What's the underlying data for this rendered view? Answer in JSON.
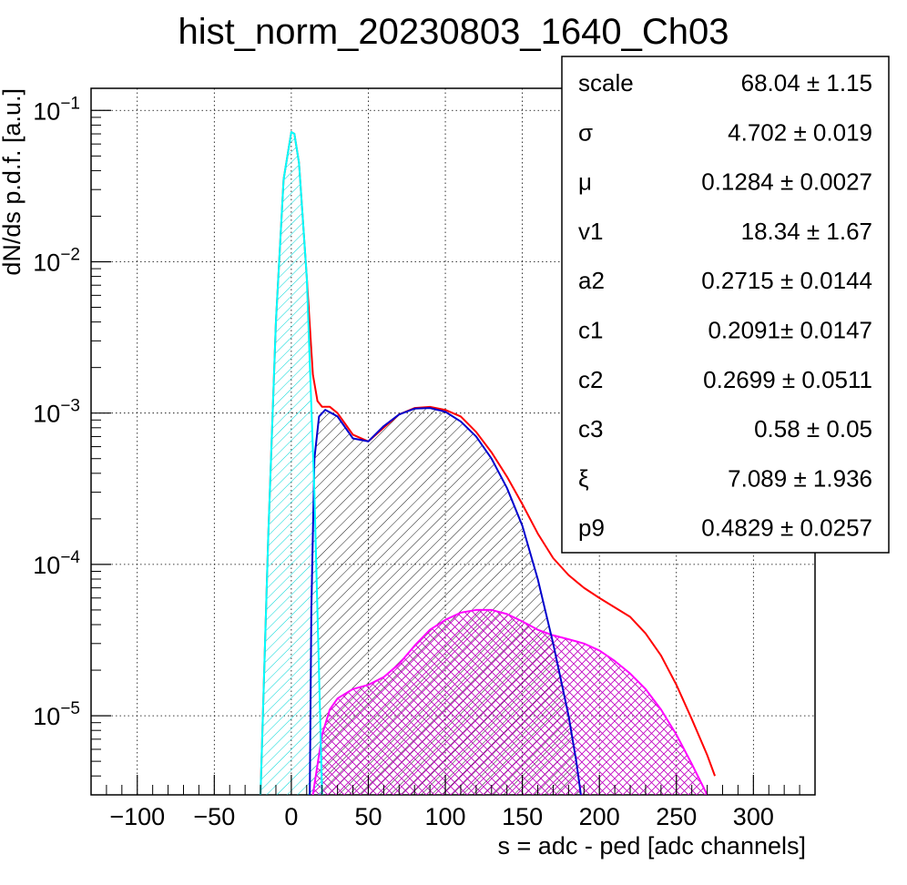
{
  "chart_data": {
    "type": "line",
    "title": "hist_norm_20230803_1640_Ch03",
    "xlabel": "s = adc - ped [adc channels]",
    "ylabel": "dN/ds p.d.f. [a.u.]",
    "xlim": [
      -130,
      340
    ],
    "ylim": [
      3e-06,
      0.14
    ],
    "yscale": "log",
    "grid": true,
    "x_ticks": [
      -100,
      -50,
      0,
      50,
      100,
      150,
      200,
      250,
      300
    ],
    "x_tick_labels": [
      "−100",
      "−50",
      "0",
      "50",
      "100",
      "150",
      "200",
      "250",
      "300"
    ],
    "y_ticks": [
      1e-05,
      0.0001,
      0.001,
      0.01,
      0.1
    ],
    "y_tick_labels": [
      {
        "base": "10",
        "exp": "−5"
      },
      {
        "base": "10",
        "exp": "−4"
      },
      {
        "base": "10",
        "exp": "−3"
      },
      {
        "base": "10",
        "exp": "−2"
      },
      {
        "base": "10",
        "exp": "−1"
      }
    ],
    "stats_box": {
      "position": "top-right",
      "rows": [
        {
          "name": "scale",
          "value": "68.04 ± 1.15"
        },
        {
          "name": "σ",
          "value": "4.702 ± 0.019"
        },
        {
          "name": "μ",
          "value": "0.1284 ± 0.0027"
        },
        {
          "name": "v1",
          "value": "18.34 ± 1.67"
        },
        {
          "name": "a2",
          "value": "0.2715 ± 0.0144"
        },
        {
          "name": "c1",
          "value": "0.2091± 0.0147"
        },
        {
          "name": "c2",
          "value": "0.2699 ± 0.0511"
        },
        {
          "name": "c3",
          "value": "0.58 ± 0.05"
        },
        {
          "name": "ξ",
          "value": "7.089 ± 1.936"
        },
        {
          "name": "p9",
          "value": "0.4829 ± 0.0257"
        }
      ]
    },
    "series": [
      {
        "color": "#ff0000",
        "x": [
          -20,
          -15,
          -10,
          -5,
          0,
          2,
          5,
          10,
          14,
          17,
          20,
          25,
          30,
          40,
          50,
          60,
          70,
          80,
          90,
          100,
          110,
          120,
          130,
          140,
          150,
          160,
          170,
          180,
          190,
          200,
          210,
          220,
          230,
          240,
          250,
          260,
          270,
          275
        ],
        "y": [
          3e-06,
          0.00015,
          0.004,
          0.035,
          0.072,
          0.07,
          0.045,
          0.008,
          0.0018,
          0.0012,
          0.0011,
          0.0011,
          0.001,
          0.00072,
          0.00065,
          0.0008,
          0.00098,
          0.00108,
          0.0011,
          0.00105,
          0.00095,
          0.00075,
          0.00055,
          0.00038,
          0.00025,
          0.00016,
          0.00011,
          8.5e-05,
          7e-05,
          6e-05,
          5.2e-05,
          4.5e-05,
          3.5e-05,
          2.5e-05,
          1.6e-05,
          9.5e-06,
          5.5e-06,
          4e-06
        ]
      },
      {
        "color": "#00ffff",
        "fill": "cyan-hatch",
        "x": [
          -20,
          -15,
          -10,
          -5,
          0,
          2,
          5,
          10,
          15,
          20
        ],
        "y": [
          3e-06,
          0.00015,
          0.004,
          0.035,
          0.072,
          0.07,
          0.045,
          0.008,
          0.0003,
          3e-06
        ]
      },
      {
        "color": "#0000cc",
        "fill": "black-hatch",
        "x": [
          12,
          13,
          15,
          18,
          22,
          26,
          30,
          40,
          50,
          60,
          70,
          80,
          90,
          100,
          110,
          120,
          130,
          140,
          150,
          160,
          170,
          180,
          185,
          188
        ],
        "y": [
          3e-06,
          5e-05,
          0.0005,
          0.00095,
          0.00105,
          0.001,
          0.00095,
          0.00068,
          0.00065,
          0.00082,
          0.00098,
          0.00107,
          0.00108,
          0.00102,
          0.00088,
          0.0007,
          0.0005,
          0.00032,
          0.00018,
          8e-05,
          3e-05,
          1e-05,
          5e-06,
          3e-06
        ]
      },
      {
        "color": "#ff00ff",
        "fill": "magenta-crosshatch",
        "x": [
          14,
          20,
          25,
          30,
          40,
          50,
          60,
          70,
          80,
          90,
          100,
          110,
          120,
          130,
          140,
          150,
          160,
          170,
          180,
          190,
          200,
          210,
          220,
          230,
          240,
          250,
          260,
          270
        ],
        "y": [
          3e-06,
          7.5e-06,
          1.1e-05,
          1.3e-05,
          1.5e-05,
          1.6e-05,
          1.8e-05,
          2.2e-05,
          2.9e-05,
          3.7e-05,
          4.3e-05,
          4.8e-05,
          5e-05,
          5e-05,
          4.7e-05,
          4.2e-05,
          3.7e-05,
          3.4e-05,
          3.2e-05,
          3e-05,
          2.7e-05,
          2.3e-05,
          1.9e-05,
          1.5e-05,
          1.1e-05,
          7.5e-06,
          4.8e-06,
          3e-06
        ]
      }
    ]
  }
}
